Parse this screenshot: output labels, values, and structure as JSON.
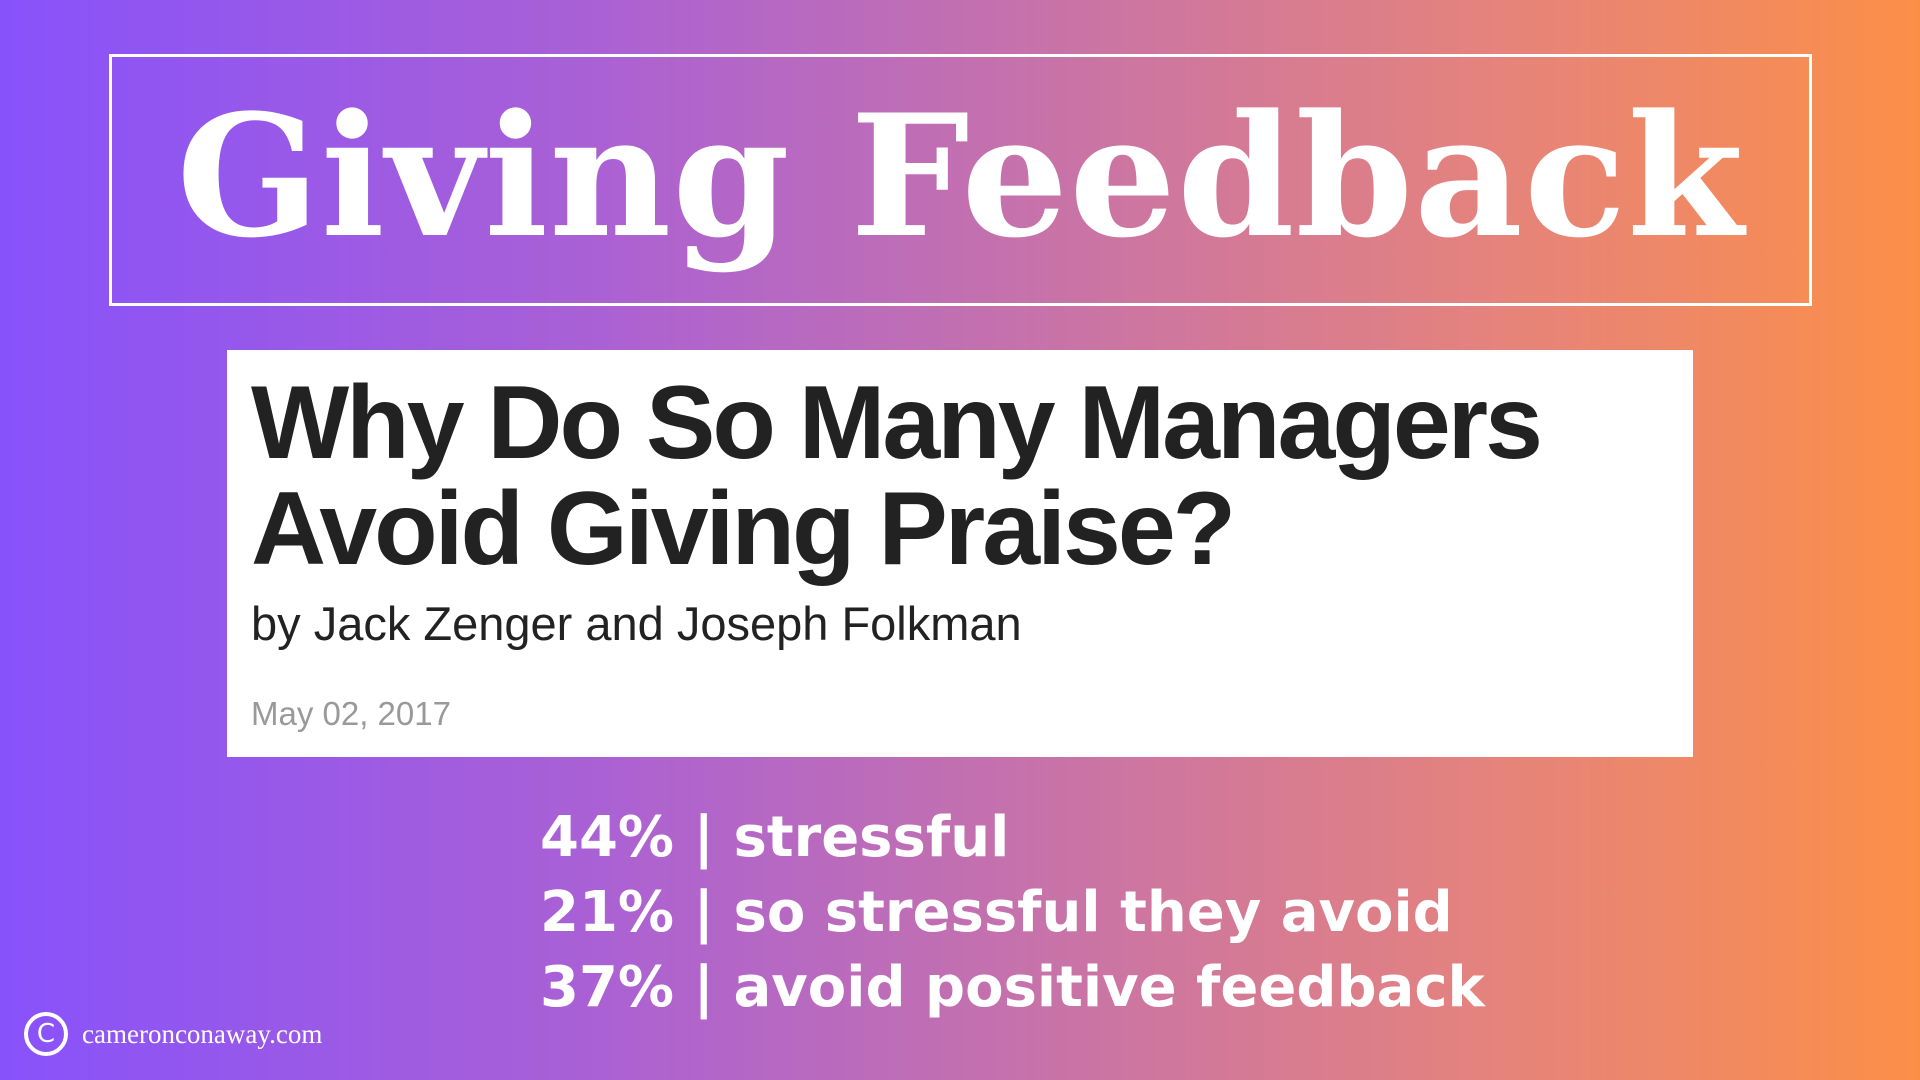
{
  "title": "Giving Feedback",
  "article": {
    "headline_line1": "Why Do So Many Managers",
    "headline_line2": "Avoid Giving Praise?",
    "byline": "by Jack Zenger and Joseph Folkman",
    "date": "May 02, 2017"
  },
  "stats": [
    "44% | stressful",
    "21% | so stressful they avoid",
    "37% | avoid positive feedback"
  ],
  "footer": {
    "icon": "copyright-icon",
    "symbol": "C",
    "site": "cameronconaway.com"
  }
}
